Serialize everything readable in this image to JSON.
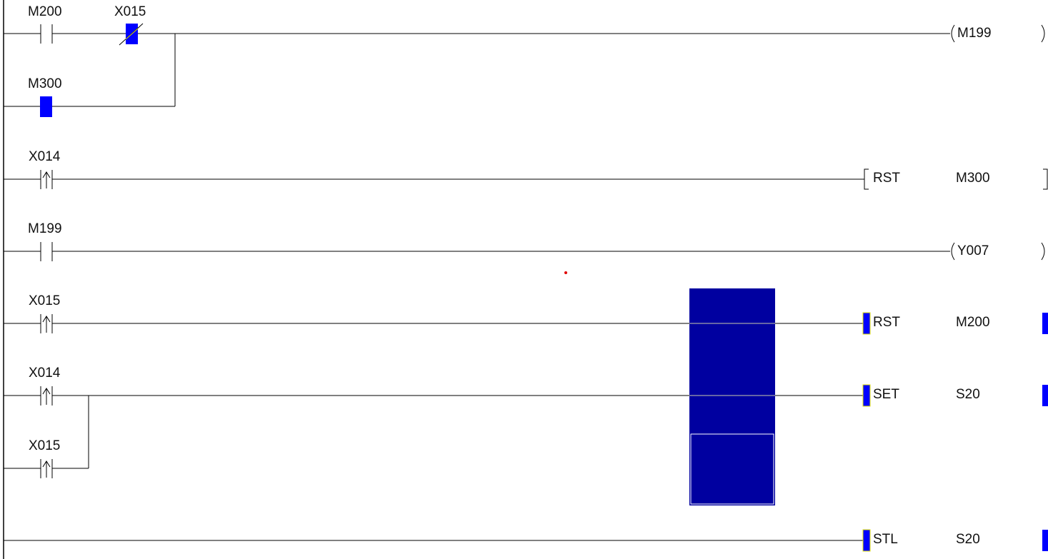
{
  "colors": {
    "active": "#0000ff",
    "selection": "#0000a0",
    "wire": "#000000",
    "yellow": "#e0e000"
  },
  "rungs": [
    {
      "contacts": [
        "M200",
        "X015"
      ],
      "branch": [
        "M300"
      ],
      "coil": "M199"
    },
    {
      "contacts": [
        "X014"
      ],
      "instruction": "RST",
      "operand": "M300"
    },
    {
      "contacts": [
        "M199"
      ],
      "coil": "Y007"
    },
    {
      "contacts": [
        "X015"
      ],
      "instruction": "RST",
      "operand": "M200"
    },
    {
      "contacts": [
        "X014"
      ],
      "branch": [
        "X015"
      ],
      "instruction": "SET",
      "operand": "S20"
    },
    {
      "instruction": "STL",
      "operand": "S20"
    }
  ]
}
